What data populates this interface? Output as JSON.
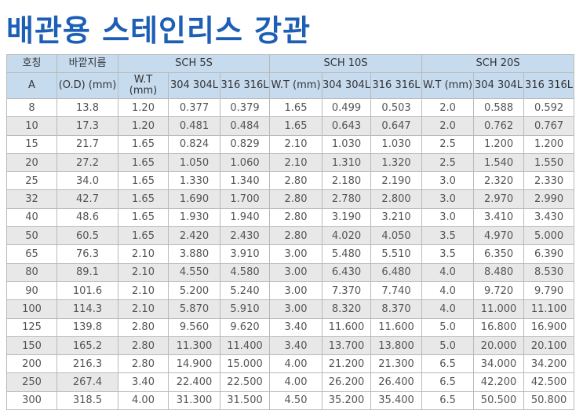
{
  "title": "배관용 스테인리스 강관",
  "header": {
    "nominal": "호칭",
    "nominal_unit": "A",
    "od": "바깥지름",
    "od_unit": "(O.D) (mm)",
    "groups": [
      "SCH 5S",
      "SCH 10S",
      "SCH 20S"
    ],
    "wt": "W.T (mm)",
    "c304": "304 304L",
    "c316": "316  316L"
  },
  "rows": [
    [
      "8",
      "13.8",
      "1.20",
      "0.377",
      "0.379",
      "1.65",
      "0.499",
      "0.503",
      "2.0",
      "0.588",
      "0.592"
    ],
    [
      "10",
      "17.3",
      "1.20",
      "0.481",
      "0.484",
      "1.65",
      "0.643",
      "0.647",
      "2.0",
      "0.762",
      "0.767"
    ],
    [
      "15",
      "21.7",
      "1.65",
      "0.824",
      "0.829",
      "2.10",
      "1.030",
      "1.030",
      "2.5",
      "1.200",
      "1.200"
    ],
    [
      "20",
      "27.2",
      "1.65",
      "1.050",
      "1.060",
      "2.10",
      "1.310",
      "1.320",
      "2.5",
      "1.540",
      "1.550"
    ],
    [
      "25",
      "34.0",
      "1.65",
      "1.330",
      "1.340",
      "2.80",
      "2.180",
      "2.190",
      "3.0",
      "2.320",
      "2.330"
    ],
    [
      "32",
      "42.7",
      "1.65",
      "1.690",
      "1.700",
      "2.80",
      "2.780",
      "2.800",
      "3.0",
      "2.970",
      "2.990"
    ],
    [
      "40",
      "48.6",
      "1.65",
      "1.930",
      "1.940",
      "2.80",
      "3.190",
      "3.210",
      "3.0",
      "3.410",
      "3.430"
    ],
    [
      "50",
      "60.5",
      "1.65",
      "2.420",
      "2.430",
      "2.80",
      "4.020",
      "4.050",
      "3.5",
      "4.970",
      "5.000"
    ],
    [
      "65",
      "76.3",
      "2.10",
      "3.880",
      "3.910",
      "3.00",
      "5.480",
      "5.510",
      "3.5",
      "6.350",
      "6.390"
    ],
    [
      "80",
      "89.1",
      "2.10",
      "4.550",
      "4.580",
      "3.00",
      "6.430",
      "6.480",
      "4.0",
      "8.480",
      "8.530"
    ],
    [
      "90",
      "101.6",
      "2.10",
      "5.200",
      "5.240",
      "3.00",
      "7.370",
      "7.740",
      "4.0",
      "9.720",
      "9.790"
    ],
    [
      "100",
      "114.3",
      "2.10",
      "5.870",
      "5.910",
      "3.00",
      "8.320",
      "8.370",
      "4.0",
      "11.000",
      "11.100"
    ],
    [
      "125",
      "139.8",
      "2.80",
      "9.560",
      "9.620",
      "3.40",
      "11.600",
      "11.600",
      "5.0",
      "16.800",
      "16.900"
    ],
    [
      "150",
      "165.2",
      "2.80",
      "11.300",
      "11.400",
      "3.40",
      "13.700",
      "13.800",
      "5.0",
      "20.000",
      "20.100"
    ],
    [
      "200",
      "216.3",
      "2.80",
      "14.900",
      "15.000",
      "4.00",
      "21.200",
      "21.300",
      "6.5",
      "34.000",
      "34.200"
    ],
    [
      "250",
      "267.4",
      "3.40",
      "22.400",
      "22.500",
      "4.00",
      "26.200",
      "26.400",
      "6.5",
      "42.200",
      "42.500"
    ],
    [
      "300",
      "318.5",
      "4.00",
      "31.300",
      "31.500",
      "4.50",
      "35.200",
      "35.400",
      "6.5",
      "50.500",
      "50.800"
    ]
  ]
}
